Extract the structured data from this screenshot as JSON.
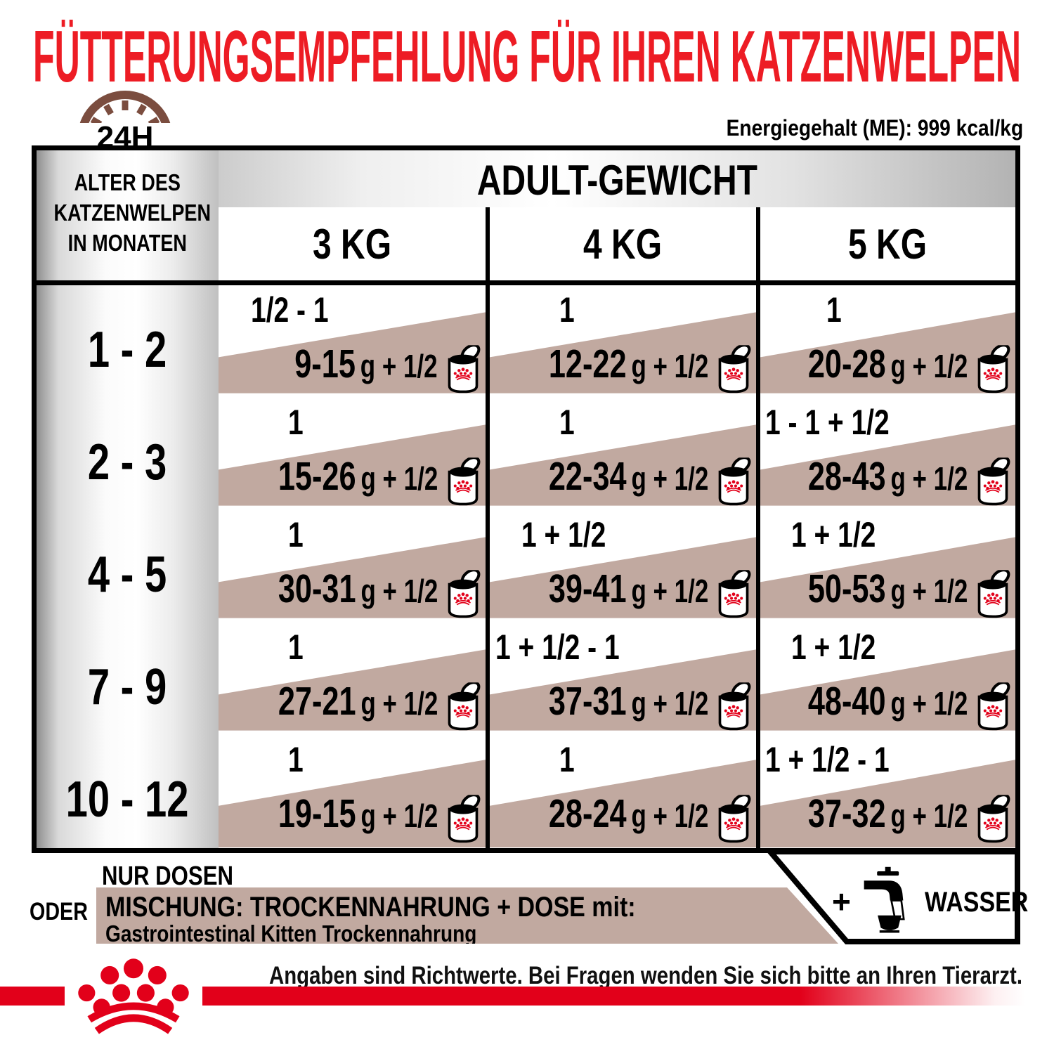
{
  "title": "FÜTTERUNGSEMPFEHLUNG FÜR IHREN KATZENWELPEN",
  "energy_label": "Energiegehalt (ME): 999 kcal/kg",
  "clock_label": "24H",
  "table": {
    "weight_header": "ADULT-GEWICHT",
    "age_header_lines": [
      "ALTER DES",
      "KATZENWELPEN",
      "IN MONATEN"
    ],
    "weight_columns": [
      "3 KG",
      "4 KG",
      "5 KG"
    ],
    "rows": [
      {
        "age": "1 - 2",
        "cells": [
          {
            "cans": "1/2 - 1",
            "mix_grams": "9-15",
            "mix_suffix": "g + 1/2"
          },
          {
            "cans": "1",
            "mix_grams": "12-22",
            "mix_suffix": "g + 1/2"
          },
          {
            "cans": "1",
            "mix_grams": "20-28",
            "mix_suffix": "g + 1/2"
          }
        ]
      },
      {
        "age": "2 - 3",
        "cells": [
          {
            "cans": "1",
            "mix_grams": "15-26",
            "mix_suffix": "g + 1/2"
          },
          {
            "cans": "1",
            "mix_grams": "22-34",
            "mix_suffix": "g + 1/2"
          },
          {
            "cans": "1 - 1 + 1/2",
            "mix_grams": "28-43",
            "mix_suffix": "g + 1/2"
          }
        ]
      },
      {
        "age": "4 - 5",
        "cells": [
          {
            "cans": "1",
            "mix_grams": "30-31",
            "mix_suffix": "g + 1/2"
          },
          {
            "cans": "1 + 1/2",
            "mix_grams": "39-41",
            "mix_suffix": "g + 1/2"
          },
          {
            "cans": "1 + 1/2",
            "mix_grams": "50-53",
            "mix_suffix": "g + 1/2"
          }
        ]
      },
      {
        "age": "7 - 9",
        "cells": [
          {
            "cans": "1",
            "mix_grams": "27-21",
            "mix_suffix": "g + 1/2"
          },
          {
            "cans": "1 + 1/2 - 1",
            "mix_grams": "37-31",
            "mix_suffix": "g + 1/2"
          },
          {
            "cans": "1 + 1/2",
            "mix_grams": "48-40",
            "mix_suffix": "g + 1/2"
          }
        ]
      },
      {
        "age": "10 - 12",
        "cells": [
          {
            "cans": "1",
            "mix_grams": "19-15",
            "mix_suffix": "g + 1/2"
          },
          {
            "cans": "1",
            "mix_grams": "28-24",
            "mix_suffix": "g + 1/2"
          },
          {
            "cans": "1 + 1/2 - 1",
            "mix_grams": "37-32",
            "mix_suffix": "g + 1/2"
          }
        ]
      }
    ]
  },
  "legend": {
    "cans_only": "NUR DOSEN",
    "or": "ODER",
    "mix_title": "MISCHUNG: TROCKENNAHRUNG + DOSE mit:",
    "mix_product": "Gastrointestinal Kitten Trockennahrung",
    "water_plus": "+",
    "water_label": "WASSER"
  },
  "footer_note": "Angaben sind Richtwerte. Bei Fragen wenden Sie sich bitte an Ihren Tierarzt.",
  "icons": {
    "clock": "clock-24h-icon",
    "can": "food-can-icon",
    "tap": "water-tap-icon",
    "crown": "royal-canin-crown-logo"
  },
  "colors": {
    "title_red": "#ed1c24",
    "brand_red": "#e2001a",
    "mix_tan": "#c1a9a0",
    "clock_brown": "#7b4d3f"
  }
}
